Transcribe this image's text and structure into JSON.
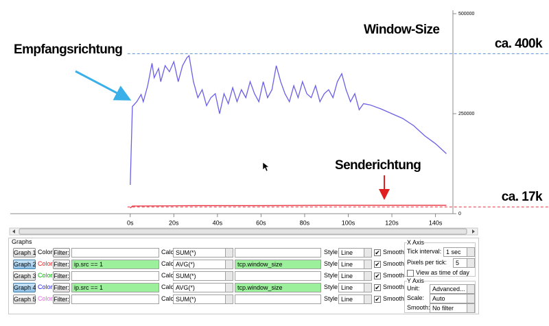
{
  "chart_data": {
    "type": "line",
    "title": "Window-Size",
    "annotations": [
      "Empfangsrichtung",
      "Senderichtung"
    ],
    "xlim": [
      -55,
      148
    ],
    "ylim": [
      0,
      500000
    ],
    "xticks": [
      {
        "value": 0,
        "label": "0s"
      },
      {
        "value": 20,
        "label": "20s"
      },
      {
        "value": 40,
        "label": "40s"
      },
      {
        "value": 60,
        "label": "60s"
      },
      {
        "value": 80,
        "label": "80s"
      },
      {
        "value": 100,
        "label": "100s"
      },
      {
        "value": 120,
        "label": "120s"
      },
      {
        "value": 140,
        "label": "140s"
      }
    ],
    "yticks": [
      0,
      250000,
      500000
    ],
    "reference_lines": [
      {
        "value": 400000,
        "label": "ca. 400k",
        "color": "#5b8fd0"
      },
      {
        "value": 17000,
        "label": "ca. 17k",
        "color": "#e0303c"
      }
    ],
    "series": [
      {
        "name": "Graph 2",
        "color": "#6a5ee8",
        "x": [
          0,
          1,
          3,
          5,
          6,
          8,
          10,
          11,
          13,
          14,
          16,
          18,
          20,
          22,
          24,
          26,
          27,
          29,
          31,
          33,
          35,
          37,
          39,
          41,
          43,
          45,
          47,
          49,
          51,
          53,
          55,
          57,
          59,
          61,
          63,
          65,
          67,
          69,
          71,
          73,
          75,
          77,
          79,
          81,
          83,
          85,
          87,
          89,
          91,
          93,
          95,
          97,
          99,
          101,
          103,
          105,
          107,
          110,
          115,
          120,
          125,
          130,
          135,
          140,
          145
        ],
        "values": [
          72000,
          268000,
          280000,
          298000,
          280000,
          320000,
          376000,
          340000,
          363000,
          330000,
          370000,
          355000,
          380000,
          330000,
          370000,
          390000,
          395000,
          330000,
          290000,
          310000,
          270000,
          290000,
          300000,
          250000,
          300000,
          275000,
          315000,
          280000,
          310000,
          290000,
          330000,
          300000,
          280000,
          330000,
          290000,
          310000,
          370000,
          330000,
          300000,
          280000,
          320000,
          290000,
          330000,
          300000,
          290000,
          320000,
          280000,
          300000,
          310000,
          290000,
          330000,
          350000,
          310000,
          280000,
          300000,
          260000,
          275000,
          272000,
          262000,
          250000,
          238000,
          220000,
          195000,
          175000,
          150000
        ]
      },
      {
        "name": "Graph 4",
        "color": "#e83040",
        "x": [
          0,
          1,
          30,
          60,
          90,
          110,
          145
        ],
        "values": [
          14000,
          19000,
          20000,
          20000,
          21000,
          21000,
          21000
        ]
      }
    ]
  },
  "panel": {
    "title": "Graphs",
    "rows": [
      {
        "button": "Graph 1",
        "active": false,
        "color_label": "Color",
        "color": "#000000",
        "filter_button": "Filter:",
        "filter": "",
        "calc_label": "Calc:",
        "calc": "SUM(*)",
        "field": "",
        "style_label": "Style:",
        "style": "Line",
        "smooth": true,
        "smooth_label": "Smooth"
      },
      {
        "button": "Graph 2",
        "active": true,
        "color_label": "Color",
        "color": "#e02020",
        "filter_button": "Filter:",
        "filter": "ip.src == 1",
        "calc_label": "Calc:",
        "calc": "AVG(*)",
        "field": "tcp.window_size",
        "style_label": "Style:",
        "style": "Line",
        "smooth": true,
        "smooth_label": "Smooth"
      },
      {
        "button": "Graph 3",
        "active": false,
        "color_label": "Color",
        "color": "#10b010",
        "filter_button": "Filter:",
        "filter": "",
        "calc_label": "Calc:",
        "calc": "SUM(*)",
        "field": "",
        "style_label": "Style:",
        "style": "Line",
        "smooth": true,
        "smooth_label": "Smooth"
      },
      {
        "button": "Graph 4",
        "active": true,
        "color_label": "Color",
        "color": "#2020e0",
        "filter_button": "Filter:",
        "filter": "ip.src == 1",
        "calc_label": "Calc:",
        "calc": "AVG(*)",
        "field": "tcp.window_size",
        "style_label": "Style:",
        "style": "Line",
        "smooth": true,
        "smooth_label": "Smooth"
      },
      {
        "button": "Graph 5",
        "active": false,
        "color_label": "Color",
        "color": "#e070e0",
        "filter_button": "Filter:",
        "filter": "",
        "calc_label": "Calc:",
        "calc": "SUM(*)",
        "field": "",
        "style_label": "Style:",
        "style": "Line",
        "smooth": true,
        "smooth_label": "Smooth"
      }
    ],
    "x_axis": {
      "title": "X Axis",
      "tick_interval_label": "Tick interval:",
      "tick_interval": "1 sec",
      "pixels_label": "Pixels per tick:",
      "pixels": "5",
      "time_of_day_label": "View as time of day",
      "time_of_day": false
    },
    "y_axis": {
      "title": "Y Axis",
      "unit_label": "Unit:",
      "unit": "Advanced...",
      "scale_label": "Scale:",
      "scale": "Auto",
      "smooth_label": "Smooth:",
      "smooth": "No filter"
    }
  }
}
